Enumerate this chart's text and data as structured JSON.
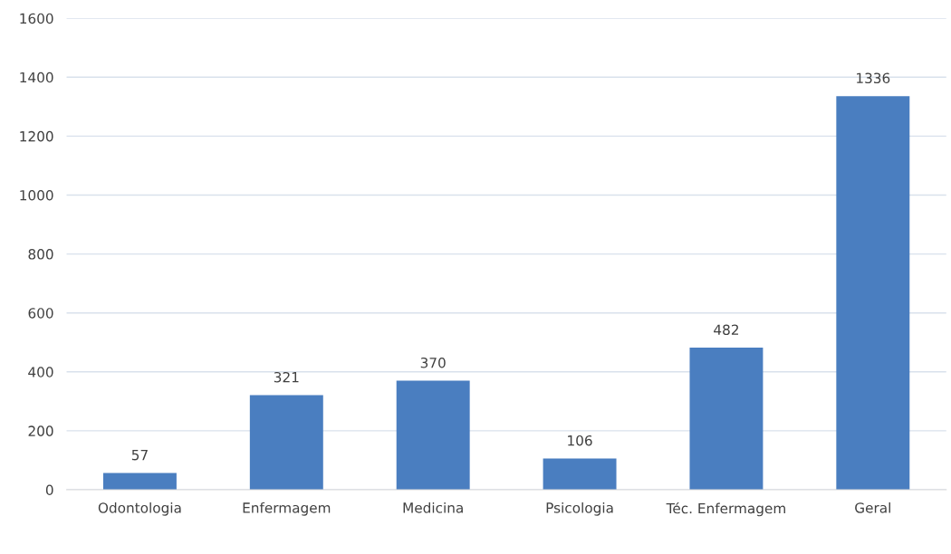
{
  "chart_data": {
    "type": "bar",
    "categories": [
      "Odontologia",
      "Enfermagem",
      "Medicina",
      "Psicologia",
      "Téc. Enfermagem",
      "Geral"
    ],
    "values": [
      57,
      321,
      370,
      106,
      482,
      1336
    ],
    "color": "#4a7ec0",
    "ylim": [
      0,
      1600
    ],
    "yticks": [
      0,
      200,
      400,
      600,
      800,
      1000,
      1200,
      1400,
      1600
    ],
    "grid": "y",
    "data_labels": true
  }
}
